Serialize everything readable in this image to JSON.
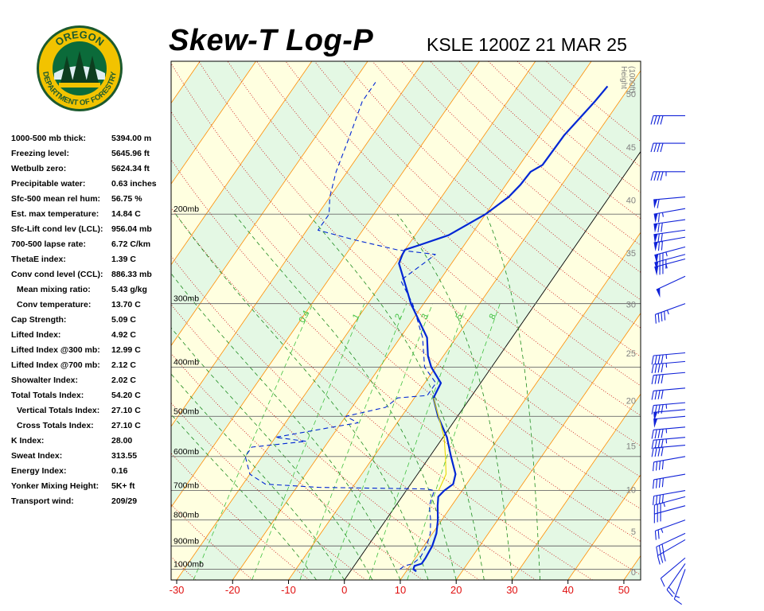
{
  "header": {
    "title": "Skew-T Log-P",
    "station": "KSLE 1200Z 21 MAR 25"
  },
  "logo": {
    "text_top": "OREGON",
    "text_ring": "DEPARTMENT OF FORESTRY",
    "colors": {
      "ring": "#f2c300",
      "inner": "#0b6b3a",
      "border": "#1c5a2e"
    }
  },
  "indices": [
    {
      "label": "1000-500 mb thick:",
      "value": "5394.00 m",
      "sub": false
    },
    {
      "label": "Freezing level:",
      "value": "5645.96 ft",
      "sub": false
    },
    {
      "label": "Wetbulb zero:",
      "value": "5624.34 ft",
      "sub": false
    },
    {
      "label": "Precipitable water:",
      "value": "0.63 inches",
      "sub": false
    },
    {
      "label": "Sfc-500 mean rel hum:",
      "value": "56.75 %",
      "sub": false
    },
    {
      "label": "Est. max temperature:",
      "value": "14.84 C",
      "sub": false
    },
    {
      "label": "Sfc-Lift cond lev (LCL):",
      "value": "956.04 mb",
      "sub": false
    },
    {
      "label": "700-500 lapse rate:",
      "value": "6.72 C/km",
      "sub": false
    },
    {
      "label": "ThetaE index:",
      "value": "1.39 C",
      "sub": false
    },
    {
      "label": "Conv cond level (CCL):",
      "value": "886.33 mb",
      "sub": false
    },
    {
      "label": "Mean mixing ratio:",
      "value": "5.43 g/kg",
      "sub": true
    },
    {
      "label": "Conv temperature:",
      "value": "13.70 C",
      "sub": true
    },
    {
      "label": "Cap Strength:",
      "value": "5.09 C",
      "sub": false
    },
    {
      "label": "Lifted Index:",
      "value": "4.92 C",
      "sub": false
    },
    {
      "label": "Lifted Index @300 mb:",
      "value": "12.99 C",
      "sub": false
    },
    {
      "label": "Lifted Index @700 mb:",
      "value": "2.12 C",
      "sub": false
    },
    {
      "label": "Showalter Index:",
      "value": "2.02 C",
      "sub": false
    },
    {
      "label": "Total Totals Index:",
      "value": "54.20 C",
      "sub": false
    },
    {
      "label": "Vertical Totals Index:",
      "value": "27.10 C",
      "sub": true
    },
    {
      "label": "Cross Totals Index:",
      "value": "27.10 C",
      "sub": true
    },
    {
      "label": "K Index:",
      "value": "28.00",
      "sub": false
    },
    {
      "label": "Sweat Index:",
      "value": "313.55",
      "sub": false
    },
    {
      "label": "Energy Index:",
      "value": "0.16",
      "sub": false
    },
    {
      "label": "Yonker Mixing Height:",
      "value": "5K+ ft",
      "sub": false
    },
    {
      "label": "Transport wind:",
      "value": "209/29",
      "sub": false
    }
  ],
  "chart_data": {
    "type": "line",
    "x_axis": {
      "label": "",
      "ticks": [
        -30,
        -20,
        -10,
        0,
        10,
        20,
        30,
        40,
        50
      ],
      "range": [
        -31,
        53
      ]
    },
    "y_axis": {
      "scale": "log-pressure",
      "range_mb": [
        1050,
        100
      ]
    },
    "pressure_levels": [
      {
        "p": 200,
        "label": "200mb"
      },
      {
        "p": 300,
        "label": "300mb"
      },
      {
        "p": 400,
        "label": "400mb"
      },
      {
        "p": 500,
        "label": "500mb"
      },
      {
        "p": 600,
        "label": "600mb"
      },
      {
        "p": 700,
        "label": "700mb"
      },
      {
        "p": 800,
        "label": "800mb"
      },
      {
        "p": 900,
        "label": "900mb"
      },
      {
        "p": 1000,
        "label": "1000mb"
      }
    ],
    "height_axis": {
      "title_line1": "Height",
      "title_line2": "(1000ft)",
      "ticks": [
        {
          "ft": 0,
          "p": 1013.25,
          "label": "0"
        },
        {
          "ft": 5000,
          "p": 843.1,
          "label": "5"
        },
        {
          "ft": 10000,
          "p": 696.8,
          "label": "10"
        },
        {
          "ft": 15000,
          "p": 571.8,
          "label": "15"
        },
        {
          "ft": 20000,
          "p": 465.6,
          "label": "20"
        },
        {
          "ft": 25000,
          "p": 376.0,
          "label": "25"
        },
        {
          "ft": 30000,
          "p": 300.9,
          "label": "30"
        },
        {
          "ft": 35000,
          "p": 238.4,
          "label": "35"
        },
        {
          "ft": 40000,
          "p": 187.5,
          "label": "40"
        },
        {
          "ft": 45000,
          "p": 147.5,
          "label": "45"
        },
        {
          "ft": 50000,
          "p": 116.0,
          "label": "50"
        }
      ]
    },
    "mixing_ratio_labels": [
      "0.4",
      "1",
      "2",
      "3",
      "5",
      "8"
    ],
    "mixing_ratio_values": [
      0.4,
      1,
      2,
      3,
      5,
      8
    ],
    "series": [
      {
        "color": "#0026d4",
        "style": "solid",
        "points": [
          {
            "p": 1010,
            "t": 11.8
          },
          {
            "p": 1000,
            "t": 11.0
          },
          {
            "p": 985,
            "t": 10.8
          },
          {
            "p": 975,
            "t": 11.8
          },
          {
            "p": 950,
            "t": 11.8
          },
          {
            "p": 900,
            "t": 11.5
          },
          {
            "p": 850,
            "t": 10.7
          },
          {
            "p": 800,
            "t": 9.3
          },
          {
            "p": 750,
            "t": 7.5
          },
          {
            "p": 720,
            "t": 6.5
          },
          {
            "p": 700,
            "t": 6.8
          },
          {
            "p": 680,
            "t": 7.6
          },
          {
            "p": 650,
            "t": 6.8
          },
          {
            "p": 600,
            "t": 3.8
          },
          {
            "p": 550,
            "t": 0.7
          },
          {
            "p": 500,
            "t": -3.5
          },
          {
            "p": 460,
            "t": -6.6
          },
          {
            "p": 430,
            "t": -7.1
          },
          {
            "p": 400,
            "t": -10.8
          },
          {
            "p": 380,
            "t": -12.8
          },
          {
            "p": 350,
            "t": -15.2
          },
          {
            "p": 300,
            "t": -22.3
          },
          {
            "p": 270,
            "t": -26.4
          },
          {
            "p": 250,
            "t": -29.4
          },
          {
            "p": 240,
            "t": -29.9
          },
          {
            "p": 235,
            "t": -30.0
          },
          {
            "p": 230,
            "t": -28.0
          },
          {
            "p": 220,
            "t": -24.0
          },
          {
            "p": 200,
            "t": -20.0
          },
          {
            "p": 185,
            "t": -18.0
          },
          {
            "p": 175,
            "t": -17.4
          },
          {
            "p": 165,
            "t": -17.2
          },
          {
            "p": 160,
            "t": -15.9
          },
          {
            "p": 140,
            "t": -15.7
          },
          {
            "p": 120,
            "t": -14.4
          },
          {
            "p": 112,
            "t": -14.0
          }
        ]
      },
      {
        "color": "#0026d4",
        "style": "dashed",
        "points": [
          {
            "p": 1000,
            "t": 8.6
          },
          {
            "p": 985,
            "t": 9.0
          },
          {
            "p": 975,
            "t": 10.2
          },
          {
            "p": 950,
            "t": 10.8
          },
          {
            "p": 900,
            "t": 10.5
          },
          {
            "p": 850,
            "t": 9.6
          },
          {
            "p": 800,
            "t": 8.0
          },
          {
            "p": 750,
            "t": 6.0
          },
          {
            "p": 700,
            "t": 5.0
          },
          {
            "p": 695,
            "t": 3.5
          },
          {
            "p": 690,
            "t": -16.0
          },
          {
            "p": 680,
            "t": -26.0
          },
          {
            "p": 650,
            "t": -30.0
          },
          {
            "p": 600,
            "t": -33.0
          },
          {
            "p": 575,
            "t": -33.0
          },
          {
            "p": 560,
            "t": -24.0
          },
          {
            "p": 550,
            "t": -30.0
          },
          {
            "p": 525,
            "t": -21.0
          },
          {
            "p": 515,
            "t": -17.0
          },
          {
            "p": 500,
            "t": -20.0
          },
          {
            "p": 480,
            "t": -14.0
          },
          {
            "p": 460,
            "t": -13.0
          },
          {
            "p": 455,
            "t": -8.0
          },
          {
            "p": 430,
            "t": -8.0
          },
          {
            "p": 400,
            "t": -12.0
          },
          {
            "p": 350,
            "t": -16.0
          },
          {
            "p": 300,
            "t": -22.0
          },
          {
            "p": 270,
            "t": -27.0
          },
          {
            "p": 250,
            "t": -25.0
          },
          {
            "p": 240,
            "t": -24.0
          },
          {
            "p": 235,
            "t": -31.5
          },
          {
            "p": 225,
            "t": -40.0
          },
          {
            "p": 215,
            "t": -48.0
          },
          {
            "p": 200,
            "t": -48.0
          },
          {
            "p": 185,
            "t": -50.0
          },
          {
            "p": 165,
            "t": -52.0
          },
          {
            "p": 140,
            "t": -54.0
          },
          {
            "p": 120,
            "t": -56.0
          },
          {
            "p": 110,
            "t": -56.0
          }
        ]
      },
      {
        "color": "#e6d800",
        "style": "solid",
        "points": [
          {
            "p": 700,
            "t": 5.8
          },
          {
            "p": 650,
            "t": 5.1
          },
          {
            "p": 600,
            "t": 2.8
          },
          {
            "p": 550,
            "t": 0.2
          },
          {
            "p": 500,
            "t": -3.4
          },
          {
            "p": 460,
            "t": -6.6
          }
        ]
      }
    ],
    "wind_barbs": [
      {
        "p": 1000,
        "dir": 200,
        "spd": 15
      },
      {
        "p": 975,
        "dir": 215,
        "spd": 20
      },
      {
        "p": 950,
        "dir": 230,
        "spd": 10
      },
      {
        "p": 875,
        "dir": 240,
        "spd": 30
      },
      {
        "p": 850,
        "dir": 245,
        "spd": 30
      },
      {
        "p": 800,
        "dir": 250,
        "spd": 25
      },
      {
        "p": 750,
        "dir": 255,
        "spd": 30
      },
      {
        "p": 720,
        "dir": 255,
        "spd": 35
      },
      {
        "p": 700,
        "dir": 260,
        "spd": 40
      },
      {
        "p": 650,
        "dir": 260,
        "spd": 40
      },
      {
        "p": 600,
        "dir": 260,
        "spd": 40
      },
      {
        "p": 570,
        "dir": 265,
        "spd": 40
      },
      {
        "p": 550,
        "dir": 265,
        "spd": 45
      },
      {
        "p": 525,
        "dir": 265,
        "spd": 45
      },
      {
        "p": 500,
        "dir": 265,
        "spd": 50
      },
      {
        "p": 485,
        "dir": 265,
        "spd": 50
      },
      {
        "p": 470,
        "dir": 265,
        "spd": 45
      },
      {
        "p": 440,
        "dir": 265,
        "spd": 40
      },
      {
        "p": 410,
        "dir": 265,
        "spd": 40
      },
      {
        "p": 390,
        "dir": 265,
        "spd": 45
      },
      {
        "p": 375,
        "dir": 265,
        "spd": 45
      },
      {
        "p": 300,
        "dir": 250,
        "spd": 45
      },
      {
        "p": 265,
        "dir": 245,
        "spd": 50
      },
      {
        "p": 245,
        "dir": 255,
        "spd": 75
      },
      {
        "p": 240,
        "dir": 255,
        "spd": 80
      },
      {
        "p": 232,
        "dir": 255,
        "spd": 75
      },
      {
        "p": 222,
        "dir": 260,
        "spd": 70
      },
      {
        "p": 215,
        "dir": 262,
        "spd": 70
      },
      {
        "p": 205,
        "dir": 262,
        "spd": 70
      },
      {
        "p": 195,
        "dir": 260,
        "spd": 65
      },
      {
        "p": 185,
        "dir": 265,
        "spd": 60
      },
      {
        "p": 165,
        "dir": 270,
        "spd": 45
      },
      {
        "p": 145,
        "dir": 270,
        "spd": 40
      },
      {
        "p": 128,
        "dir": 270,
        "spd": 40
      }
    ],
    "colors": {
      "temperature": "#0026d4",
      "dewpoint": "#0026d4",
      "parcel": "#e6d800",
      "isotherm": "#ff8c00",
      "dry_adiabat": "#c81010",
      "moist_adiabat": "#1e8c1e",
      "mixing_ratio": "#40c040",
      "isobar": "#6b6b6b",
      "axis_tick": "#e01010",
      "band_a": "#ffffe0",
      "band_b": "#e4f8e4",
      "barb": "#1022d8",
      "height_label": "#808080"
    }
  }
}
